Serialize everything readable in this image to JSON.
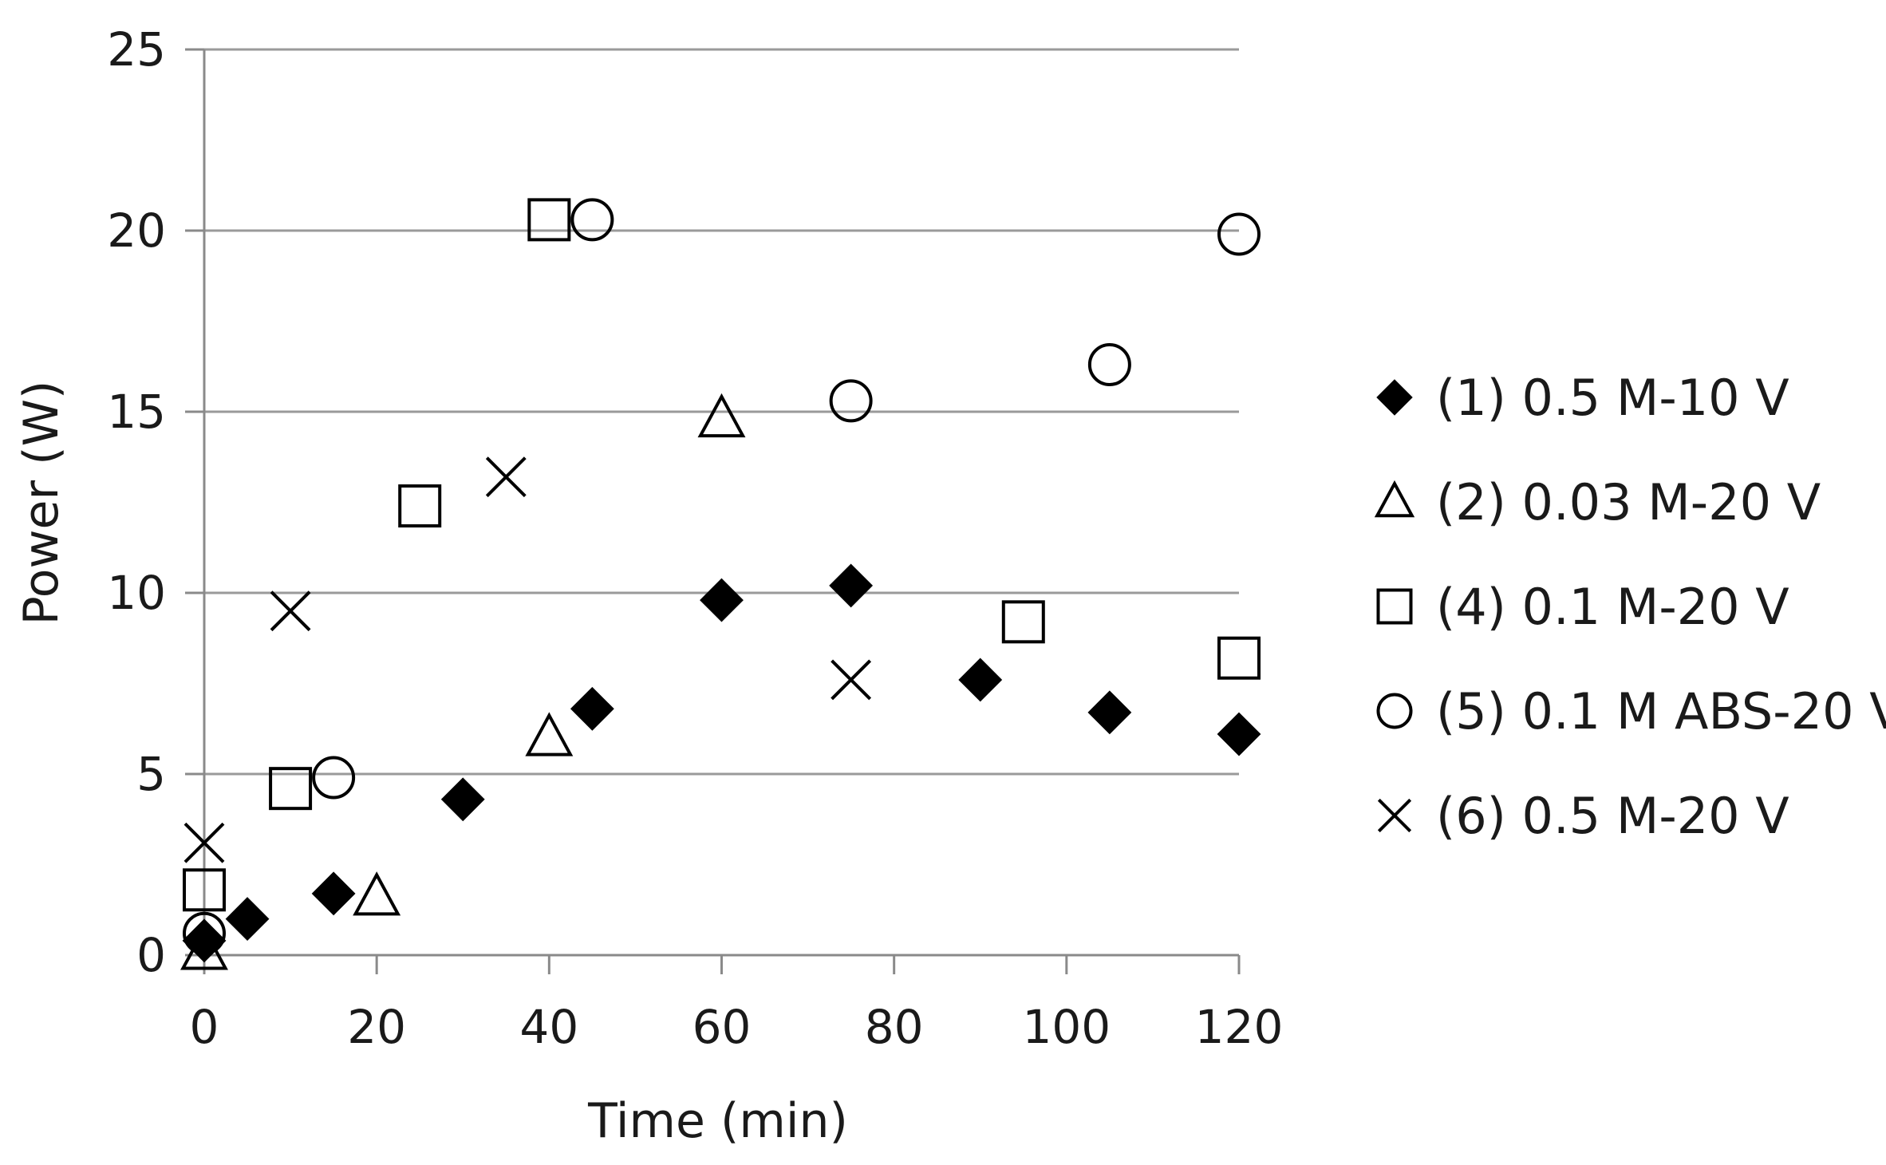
{
  "chart_data": {
    "type": "scatter",
    "xlabel": "Time (min)",
    "ylabel": "Power (W)",
    "xlim": [
      0,
      120
    ],
    "ylim": [
      0,
      25
    ],
    "x_ticks": [
      "0",
      "20",
      "40",
      "60",
      "80",
      "100",
      "120"
    ],
    "y_ticks": [
      "0",
      "5",
      "10",
      "15",
      "20",
      "25"
    ],
    "grid": true,
    "legend_position": "right",
    "series": [
      {
        "name": "(1) 0.5 M-10 V",
        "marker": "filled-diamond",
        "points": [
          [
            0,
            0.4
          ],
          [
            5,
            1.0
          ],
          [
            15,
            1.7
          ],
          [
            30,
            4.3
          ],
          [
            45,
            6.8
          ],
          [
            60,
            9.8
          ],
          [
            75,
            10.2
          ],
          [
            90,
            7.6
          ],
          [
            105,
            6.7
          ],
          [
            120,
            6.1
          ]
        ]
      },
      {
        "name": "(2) 0.03 M-20 V",
        "marker": "open-triangle",
        "points": [
          [
            0,
            0.1
          ],
          [
            20,
            1.6
          ],
          [
            40,
            6.0
          ],
          [
            60,
            14.8
          ]
        ]
      },
      {
        "name": "(4) 0.1 M-20 V",
        "marker": "open-square",
        "points": [
          [
            0,
            1.8
          ],
          [
            10,
            4.6
          ],
          [
            25,
            12.4
          ],
          [
            40,
            20.3
          ],
          [
            95,
            9.2
          ],
          [
            120,
            8.2
          ]
        ]
      },
      {
        "name": "(5) 0.1 M ABS-20 V",
        "marker": "open-circle",
        "points": [
          [
            0,
            0.6
          ],
          [
            15,
            4.9
          ],
          [
            45,
            20.3
          ],
          [
            75,
            15.3
          ],
          [
            105,
            16.3
          ],
          [
            120,
            19.9
          ]
        ]
      },
      {
        "name": "(6) 0.5 M-20 V",
        "marker": "x-cross",
        "points": [
          [
            0,
            3.1
          ],
          [
            10,
            9.5
          ],
          [
            35,
            13.2
          ],
          [
            75,
            7.6
          ]
        ]
      }
    ]
  }
}
